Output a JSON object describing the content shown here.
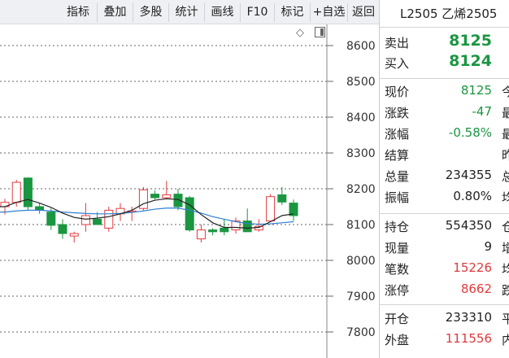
{
  "toolbar": {
    "buttons": [
      "指标",
      "叠加",
      "多股",
      "统计",
      "画线",
      "F10",
      "标记",
      "+自选",
      "返回"
    ]
  },
  "chart": {
    "price_labels": [
      "8600",
      "8500",
      "8400",
      "8300",
      "8200",
      "8100",
      "8000",
      "7900",
      "7800"
    ],
    "icons": [
      "diamond-icon",
      "panel-toggle-icon"
    ]
  },
  "chart_data": {
    "type": "candlestick",
    "y_axis": {
      "ticks": [
        8600,
        8500,
        8400,
        8300,
        8200,
        8100,
        8000,
        7900,
        7800
      ],
      "range": [
        7760,
        8640
      ]
    },
    "grid": "dashed-horizontal",
    "candles": [
      {
        "o": 8150,
        "h": 8172,
        "l": 8128,
        "c": 8162
      },
      {
        "o": 8162,
        "h": 8225,
        "l": 8150,
        "c": 8218
      },
      {
        "o": 8230,
        "h": 8232,
        "l": 8140,
        "c": 8150
      },
      {
        "o": 8150,
        "h": 8160,
        "l": 8130,
        "c": 8140
      },
      {
        "o": 8135,
        "h": 8145,
        "l": 8085,
        "c": 8098
      },
      {
        "o": 8100,
        "h": 8115,
        "l": 8060,
        "c": 8075
      },
      {
        "o": 8068,
        "h": 8080,
        "l": 8050,
        "c": 8075
      },
      {
        "o": 8100,
        "h": 8160,
        "l": 8080,
        "c": 8125
      },
      {
        "o": 8115,
        "h": 8135,
        "l": 8100,
        "c": 8100
      },
      {
        "o": 8090,
        "h": 8150,
        "l": 8080,
        "c": 8140
      },
      {
        "o": 8130,
        "h": 8160,
        "l": 8110,
        "c": 8145
      },
      {
        "o": 8135,
        "h": 8150,
        "l": 8110,
        "c": 8138
      },
      {
        "o": 8145,
        "h": 8205,
        "l": 8140,
        "c": 8197
      },
      {
        "o": 8185,
        "h": 8195,
        "l": 8170,
        "c": 8175
      },
      {
        "o": 8175,
        "h": 8222,
        "l": 8172,
        "c": 8183
      },
      {
        "o": 8185,
        "h": 8200,
        "l": 8140,
        "c": 8150
      },
      {
        "o": 8175,
        "h": 8180,
        "l": 8080,
        "c": 8085
      },
      {
        "o": 8060,
        "h": 8100,
        "l": 8050,
        "c": 8085
      },
      {
        "o": 8085,
        "h": 8090,
        "l": 8070,
        "c": 8080
      },
      {
        "o": 8090,
        "h": 8115,
        "l": 8070,
        "c": 8080
      },
      {
        "o": 8085,
        "h": 8120,
        "l": 8075,
        "c": 8110
      },
      {
        "o": 8110,
        "h": 8145,
        "l": 8080,
        "c": 8080
      },
      {
        "o": 8085,
        "h": 8115,
        "l": 8080,
        "c": 8095
      },
      {
        "o": 8110,
        "h": 8185,
        "l": 8110,
        "c": 8178
      },
      {
        "o": 8183,
        "h": 8205,
        "l": 8155,
        "c": 8163
      },
      {
        "o": 8160,
        "h": 8170,
        "l": 8110,
        "c": 8125
      }
    ],
    "ma_black": [
      8150,
      8162,
      8170,
      8160,
      8148,
      8132,
      8120,
      8115,
      8118,
      8122,
      8130,
      8140,
      8158,
      8168,
      8172,
      8170,
      8155,
      8128,
      8105,
      8092,
      8092,
      8090,
      8092,
      8108,
      8125,
      8130
    ],
    "ma_blue": [
      8135,
      8138,
      8140,
      8140,
      8138,
      8135,
      8133,
      8131,
      8130,
      8130,
      8131,
      8134,
      8138,
      8143,
      8146,
      8146,
      8140,
      8132,
      8122,
      8115,
      8108,
      8103,
      8101,
      8102,
      8105,
      8108
    ],
    "colors": {
      "up": "#e3393d",
      "down": "#1a9641",
      "ma_black": "#222222",
      "ma_blue": "#2f7fd0",
      "grid": "#666666"
    }
  },
  "panel": {
    "title": "L2505 乙烯2505",
    "ask": {
      "label": "卖出",
      "value": "8125"
    },
    "bid": {
      "label": "买入",
      "value": "8124"
    },
    "rows1": [
      {
        "label": "现价",
        "value": "8125",
        "ext": "今",
        "color": "green"
      },
      {
        "label": "涨跌",
        "value": "-47",
        "ext": "最",
        "color": "green"
      },
      {
        "label": "涨幅",
        "value": "-0.58%",
        "ext": "最",
        "color": "green"
      },
      {
        "label": "结算",
        "value": "",
        "ext": "昨",
        "color": "black"
      },
      {
        "label": "总量",
        "value": "234355",
        "ext": "总",
        "color": "black"
      },
      {
        "label": "振幅",
        "value": "0.80%",
        "ext": "均",
        "color": "black"
      }
    ],
    "rows2": [
      {
        "label": "持仓",
        "value": "554350",
        "ext": "仓",
        "color": "black"
      },
      {
        "label": "现量",
        "value": "9",
        "ext": "增",
        "color": "black"
      },
      {
        "label": "笔数",
        "value": "15226",
        "ext": "均",
        "color": "red"
      },
      {
        "label": "涨停",
        "value": "8662",
        "ext": "跌",
        "color": "red"
      }
    ],
    "rows3": [
      {
        "label": "开仓",
        "value": "233310",
        "ext": "平",
        "color": "black"
      },
      {
        "label": "外盘",
        "value": "111556",
        "ext": "内",
        "color": "red"
      }
    ]
  }
}
